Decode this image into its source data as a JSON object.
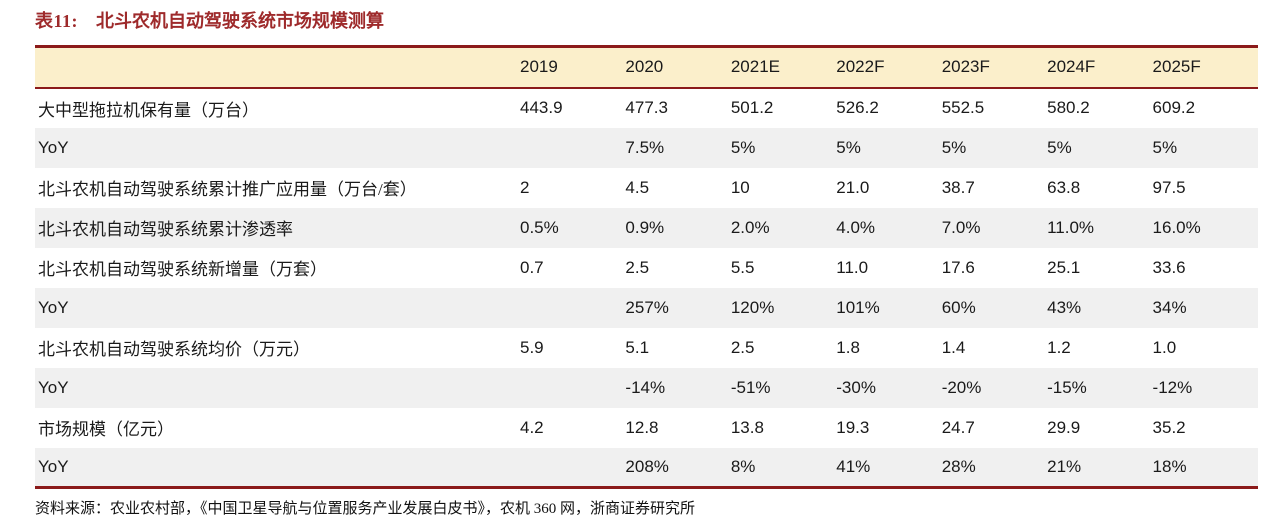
{
  "page": {
    "title_label": "表11:",
    "title_text": "北斗农机自动驾驶系统市场规模测算",
    "source_text": "资料来源：农业农村部，《中国卫星导航与位置服务产业发展白皮书》，农机 360 网，浙商证券研究所"
  },
  "colors": {
    "accent_red": "#8B1A1A",
    "title_red": "#9E2A2B",
    "header_bg": "#FBEFCB",
    "stripe_bg": "#F0F0F0"
  },
  "table": {
    "year_columns": [
      "2019",
      "2020",
      "2021E",
      "2022F",
      "2023F",
      "2024F",
      "2025F"
    ],
    "rows": [
      {
        "label": "大中型拖拉机保有量（万台）",
        "values": [
          "443.9",
          "477.3",
          "501.2",
          "526.2",
          "552.5",
          "580.2",
          "609.2"
        ]
      },
      {
        "label": "YoY",
        "values": [
          "",
          "7.5%",
          "5%",
          "5%",
          "5%",
          "5%",
          "5%"
        ]
      },
      {
        "label": "北斗农机自动驾驶系统累计推广应用量（万台/套）",
        "values": [
          "2",
          "4.5",
          "10",
          "21.0",
          "38.7",
          "63.8",
          "97.5"
        ]
      },
      {
        "label": "北斗农机自动驾驶系统累计渗透率",
        "values": [
          "0.5%",
          "0.9%",
          "2.0%",
          "4.0%",
          "7.0%",
          "11.0%",
          "16.0%"
        ]
      },
      {
        "label": "北斗农机自动驾驶系统新增量（万套）",
        "values": [
          "0.7",
          "2.5",
          "5.5",
          "11.0",
          "17.6",
          "25.1",
          "33.6"
        ]
      },
      {
        "label": "YoY",
        "values": [
          "",
          "257%",
          "120%",
          "101%",
          "60%",
          "43%",
          "34%"
        ]
      },
      {
        "label": "北斗农机自动驾驶系统均价（万元）",
        "values": [
          "5.9",
          "5.1",
          "2.5",
          "1.8",
          "1.4",
          "1.2",
          "1.0"
        ]
      },
      {
        "label": "YoY",
        "values": [
          "",
          "-14%",
          "-51%",
          "-30%",
          "-20%",
          "-15%",
          "-12%"
        ]
      },
      {
        "label": "市场规模（亿元）",
        "values": [
          "4.2",
          "12.8",
          "13.8",
          "19.3",
          "24.7",
          "29.9",
          "35.2"
        ]
      },
      {
        "label": "YoY",
        "values": [
          "",
          "208%",
          "8%",
          "41%",
          "28%",
          "21%",
          "18%"
        ]
      }
    ]
  }
}
